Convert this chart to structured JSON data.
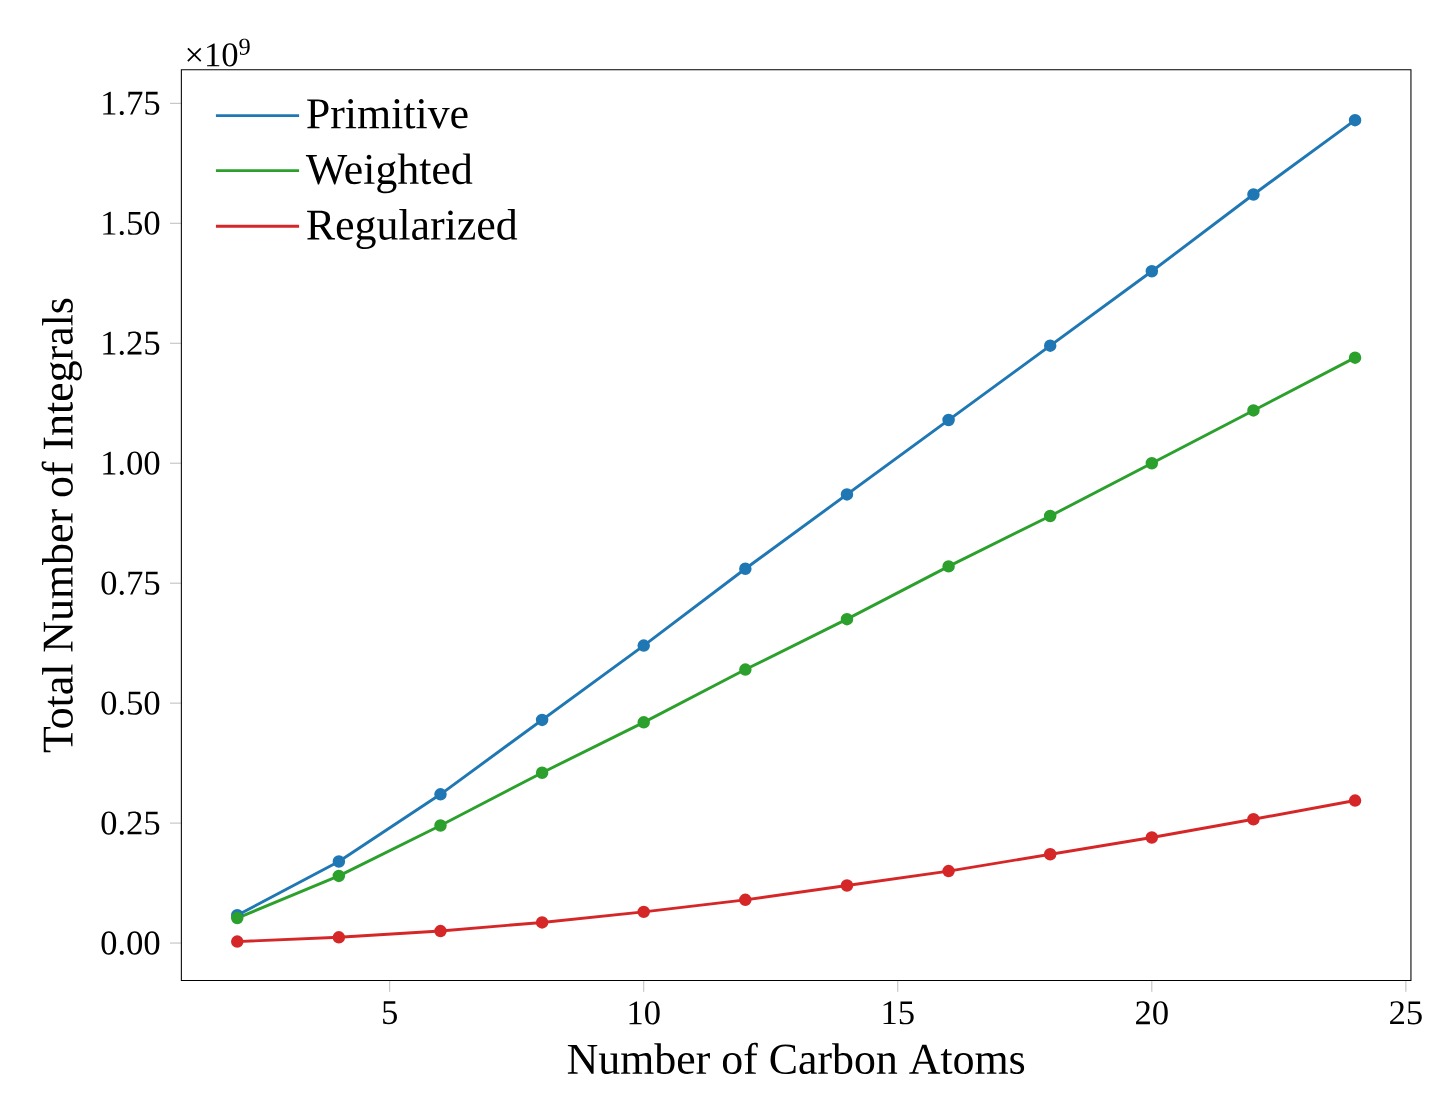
{
  "chart_data": {
    "type": "line",
    "xlabel": "Number of Carbon Atoms",
    "ylabel": "Total Number of Integrals",
    "annotations": [
      "×10$^{9}$"
    ],
    "x": [
      2,
      4,
      6,
      8,
      10,
      12,
      14,
      16,
      18,
      20,
      22,
      24
    ],
    "series": [
      {
        "name": "Primitive",
        "color": "#1f77b4",
        "values": [
          0.058,
          0.17,
          0.31,
          0.465,
          0.62,
          0.78,
          0.935,
          1.09,
          1.245,
          1.4,
          1.56,
          1.715
        ]
      },
      {
        "name": "Weighted",
        "color": "#2ca02c",
        "values": [
          0.052,
          0.14,
          0.245,
          0.355,
          0.46,
          0.57,
          0.675,
          0.785,
          0.89,
          1.0,
          1.11,
          1.22
        ]
      },
      {
        "name": "Regularized",
        "color": "#d62728",
        "values": [
          0.003,
          0.012,
          0.025,
          0.043,
          0.065,
          0.09,
          0.12,
          0.15,
          0.185,
          0.22,
          0.258,
          0.297
        ]
      }
    ],
    "xlim": [
      0.9,
      25.1
    ],
    "ylim": [
      -0.078,
      1.82
    ],
    "xticks": [
      5,
      10,
      15,
      20,
      25
    ],
    "yticks": [
      {
        "value": 0,
        "label": "0.00"
      },
      {
        "value": 0.25,
        "label": "0.25"
      },
      {
        "value": 0.5,
        "label": "0.50"
      },
      {
        "value": 0.75,
        "label": "0.75"
      },
      {
        "value": 1.0,
        "label": "1.00"
      },
      {
        "value": 1.25,
        "label": "1.25"
      },
      {
        "value": 1.5,
        "label": "1.50"
      },
      {
        "value": 1.75,
        "label": "1.75"
      }
    ],
    "grid": false,
    "legend": "top left",
    "marker": "circle",
    "line_style": "solid"
  }
}
